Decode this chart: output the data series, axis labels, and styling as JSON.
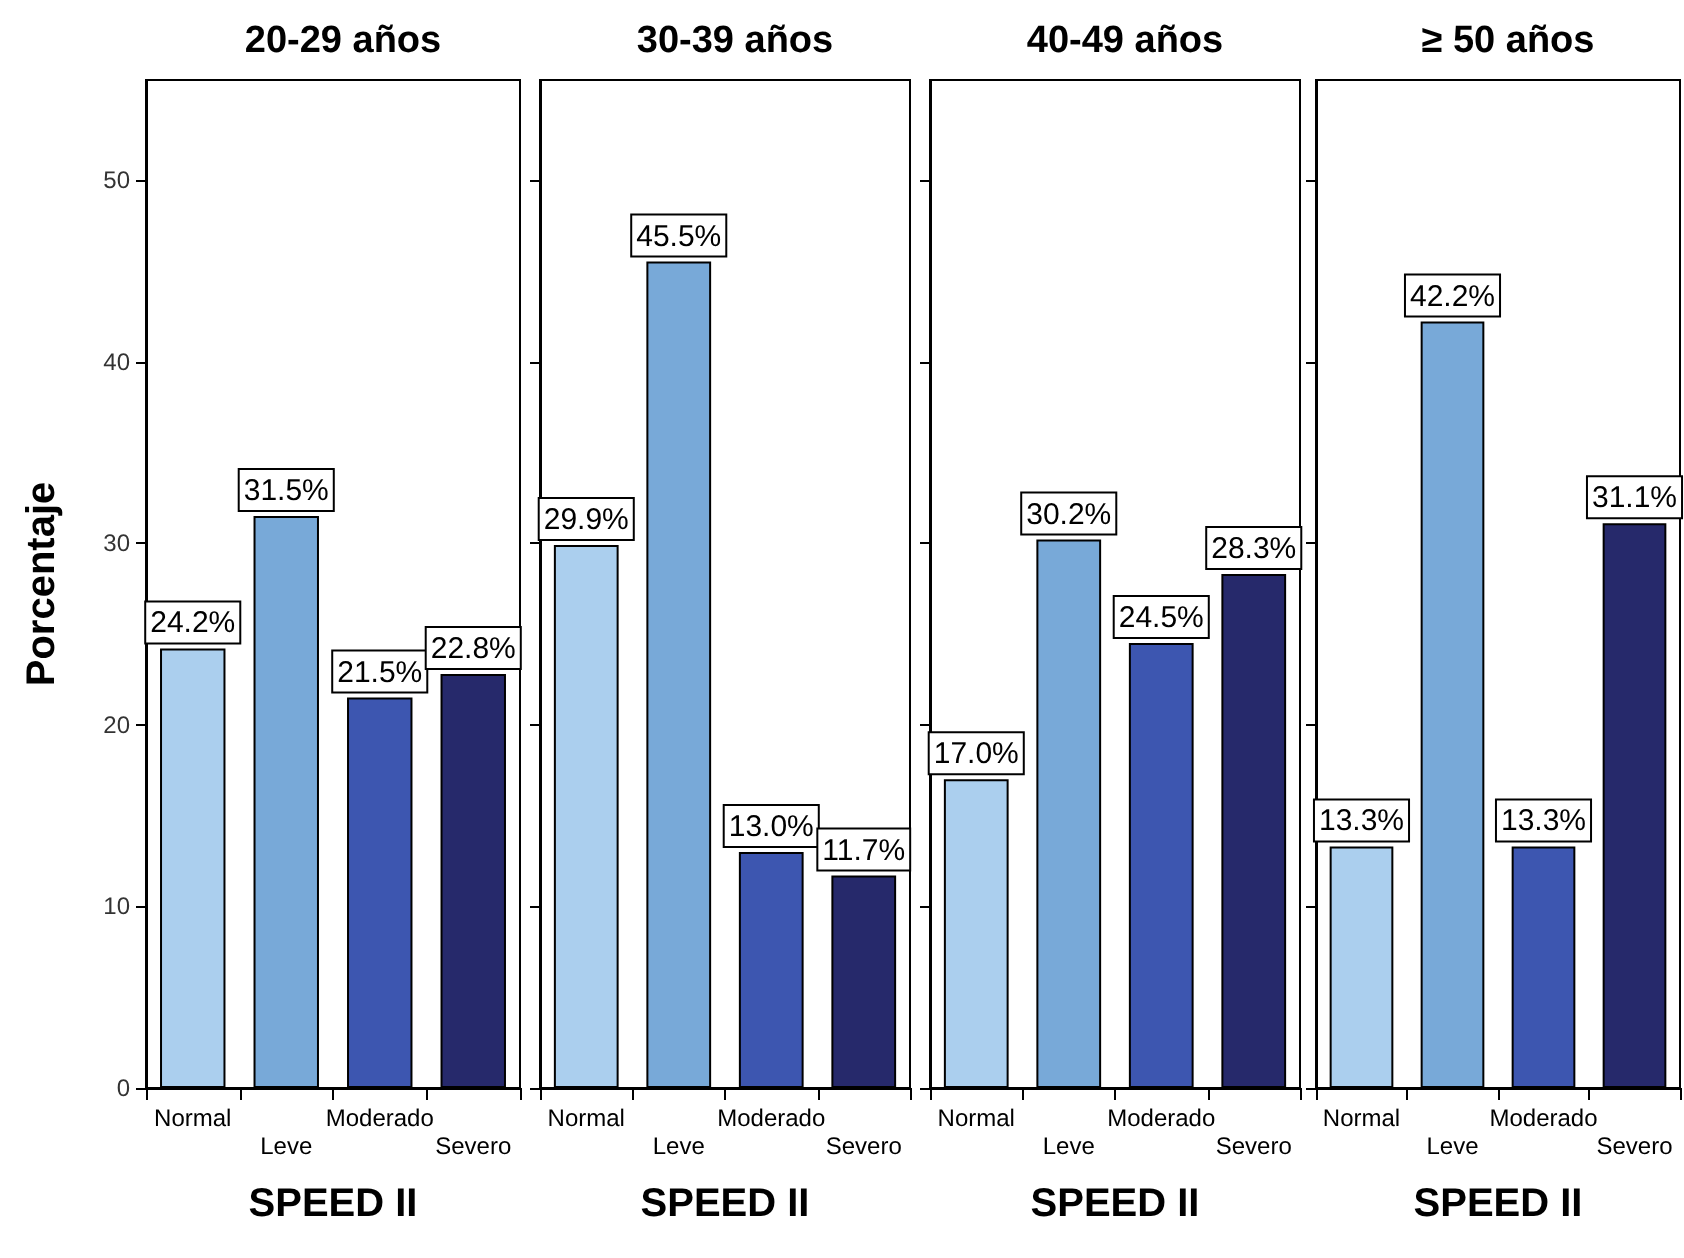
{
  "chart_data": [
    {
      "type": "bar",
      "title": "20-29 años",
      "xlabel": "SPEED II",
      "ylabel": "Porcentaje",
      "categories": [
        "Normal",
        "Leve",
        "Moderado",
        "Severo"
      ],
      "values": [
        24.2,
        31.5,
        21.5,
        22.8
      ],
      "value_labels": [
        "24.2%",
        "31.5%",
        "21.5%",
        "22.8%"
      ],
      "colors": [
        "#abcfee",
        "#78a9d8",
        "#3d56b0",
        "#26296b"
      ],
      "ylim": [
        0,
        55.5
      ],
      "yticks": [
        0,
        10,
        20,
        30,
        40,
        50
      ],
      "grid": false
    },
    {
      "type": "bar",
      "title": "30-39 años",
      "xlabel": "SPEED II",
      "categories": [
        "Normal",
        "Leve",
        "Moderado",
        "Severo"
      ],
      "values": [
        29.9,
        45.5,
        13.0,
        11.7
      ],
      "value_labels": [
        "29.9%",
        "45.5%",
        "13.0%",
        "11.7%"
      ],
      "colors": [
        "#abcfee",
        "#78a9d8",
        "#3d56b0",
        "#26296b"
      ],
      "ylim": [
        0,
        55.5
      ],
      "yticks": [
        0,
        10,
        20,
        30,
        40,
        50
      ],
      "grid": false,
      "tick_labels": "x"
    },
    {
      "type": "bar",
      "title": "40-49 años",
      "xlabel": "SPEED II",
      "categories": [
        "Normal",
        "Leve",
        "Moderado",
        "Severo"
      ],
      "values": [
        17.0,
        30.2,
        24.5,
        28.3
      ],
      "value_labels": [
        "17.0%",
        "30.2%",
        "24.5%",
        "28.3%"
      ],
      "colors": [
        "#abcfee",
        "#78a9d8",
        "#3d56b0",
        "#26296b"
      ],
      "ylim": [
        0,
        55.5
      ],
      "yticks": [
        0,
        10,
        20,
        30,
        40,
        50
      ],
      "grid": false,
      "tick_labels": "x"
    },
    {
      "type": "bar",
      "title": "≥ 50 años",
      "xlabel": "SPEED II",
      "categories": [
        "Normal",
        "Leve",
        "Moderado",
        "Severo"
      ],
      "values": [
        13.3,
        42.2,
        13.3,
        31.1
      ],
      "value_labels": [
        "13.3%",
        "42.2%",
        "13.3%",
        "31.1%"
      ],
      "colors": [
        "#abcfee",
        "#78a9d8",
        "#3d56b0",
        "#26296b"
      ],
      "ylim": [
        0,
        55.5
      ],
      "yticks": [
        0,
        10,
        20,
        30,
        40,
        50
      ],
      "grid": false,
      "tick_labels": "x"
    }
  ]
}
